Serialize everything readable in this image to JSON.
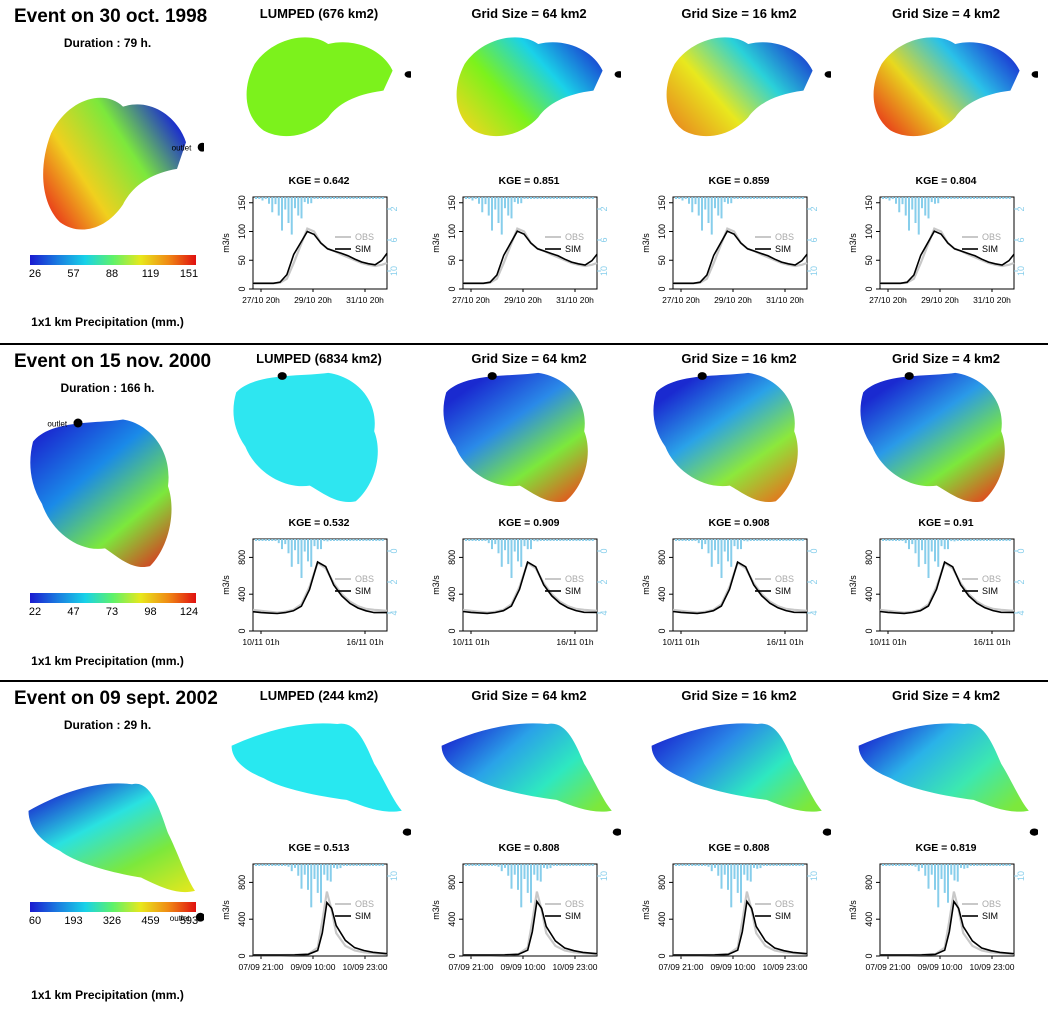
{
  "column_titles_grid": [
    "Grid Size = 64 km2",
    "Grid Size = 16 km2",
    "Grid Size = 4 km2"
  ],
  "legend": {
    "obs": "OBS",
    "sim": "SIM"
  },
  "precip_label": "1x1 km Precipitation (mm.)",
  "outlet_label": "outlet",
  "y_unit": "m3/s",
  "colors": {
    "obs": "#c8c8c8",
    "sim": "#000000",
    "rain": "#87ceeb"
  },
  "events": [
    {
      "title": "Event on 30 oct. 1998",
      "duration": "Duration : 79 h.",
      "lumped_title": "LUMPED (676 km2)",
      "colorbar_ticks": [
        "26",
        "57",
        "88",
        "119",
        "151"
      ],
      "kge": [
        "KGE = 0.642",
        "KGE = 0.851",
        "KGE = 0.859",
        "KGE = 0.804"
      ],
      "x_ticks": [
        "27/10 20h",
        "29/10 20h",
        "31/10 20h"
      ],
      "y_ticks": [
        "0",
        "50",
        "100",
        "150"
      ],
      "rain_ticks": [
        "2",
        "6",
        "10"
      ]
    },
    {
      "title": "Event on 15 nov. 2000",
      "duration": "Duration : 166 h.",
      "lumped_title": "LUMPED (6834 km2)",
      "colorbar_ticks": [
        "22",
        "47",
        "73",
        "98",
        "124"
      ],
      "kge": [
        "KGE = 0.532",
        "KGE = 0.909",
        "KGE = 0.908",
        "KGE = 0.91"
      ],
      "x_ticks": [
        "10/11 01h",
        "16/11 01h"
      ],
      "y_ticks": [
        "0",
        "400",
        "800"
      ],
      "rain_ticks": [
        "0",
        "2",
        "4"
      ]
    },
    {
      "title": "Event on 09 sept. 2002",
      "duration": "Duration : 29 h.",
      "lumped_title": "LUMPED (244 km2)",
      "colorbar_ticks": [
        "60",
        "193",
        "326",
        "459",
        "593"
      ],
      "kge": [
        "KGE = 0.513",
        "KGE = 0.808",
        "KGE = 0.808",
        "KGE = 0.819"
      ],
      "x_ticks": [
        "07/09 21:00",
        "09/09 10:00",
        "10/09 23:00"
      ],
      "y_ticks": [
        "0",
        "400",
        "800"
      ],
      "rain_ticks": [
        "10"
      ]
    }
  ],
  "chart_data": [
    {
      "type": "line",
      "title": "Event on 30 oct. 1998",
      "ylabel": "m3/s",
      "ylim": [
        0,
        160
      ],
      "x": [
        0,
        4,
        8,
        12,
        16,
        20,
        24,
        28,
        32,
        36,
        40,
        44,
        48,
        52,
        56,
        60,
        64,
        68,
        72,
        76,
        79
      ],
      "series": [
        {
          "name": "OBS",
          "values": [
            10,
            10,
            10,
            10,
            11,
            18,
            45,
            75,
            105,
            100,
            80,
            70,
            66,
            60,
            55,
            50,
            45,
            42,
            40,
            42,
            45
          ]
        },
        {
          "name": "SIM",
          "values": [
            10,
            10,
            10,
            10,
            12,
            25,
            60,
            80,
            100,
            95,
            80,
            70,
            66,
            62,
            58,
            52,
            47,
            44,
            42,
            50,
            62
          ]
        }
      ]
    },
    {
      "type": "line",
      "title": "Event on 15 nov. 2000",
      "ylabel": "m3/s",
      "ylim": [
        0,
        1000
      ],
      "x": [
        0,
        10,
        20,
        30,
        40,
        50,
        60,
        70,
        80,
        90,
        100,
        110,
        120,
        130,
        140,
        150,
        166
      ],
      "series": [
        {
          "name": "OBS",
          "values": [
            230,
            220,
            210,
            200,
            210,
            230,
            290,
            480,
            740,
            680,
            520,
            400,
            320,
            270,
            240,
            230,
            220
          ]
        },
        {
          "name": "SIM",
          "values": [
            210,
            200,
            195,
            190,
            200,
            220,
            270,
            450,
            750,
            700,
            500,
            380,
            300,
            250,
            220,
            200,
            200
          ]
        }
      ]
    },
    {
      "type": "line",
      "title": "Event on 09 sept. 2002",
      "ylabel": "m3/s",
      "ylim": [
        0,
        1000
      ],
      "x": [
        0,
        3,
        6,
        9,
        12,
        14,
        15,
        16,
        17,
        18,
        20,
        22,
        24,
        26,
        29
      ],
      "series": [
        {
          "name": "OBS",
          "values": [
            10,
            10,
            10,
            12,
            20,
            90,
            380,
            700,
            500,
            250,
            110,
            60,
            40,
            30,
            20
          ]
        },
        {
          "name": "SIM",
          "values": [
            10,
            10,
            10,
            12,
            18,
            60,
            250,
            580,
            520,
            330,
            170,
            90,
            60,
            40,
            25
          ]
        }
      ]
    }
  ]
}
